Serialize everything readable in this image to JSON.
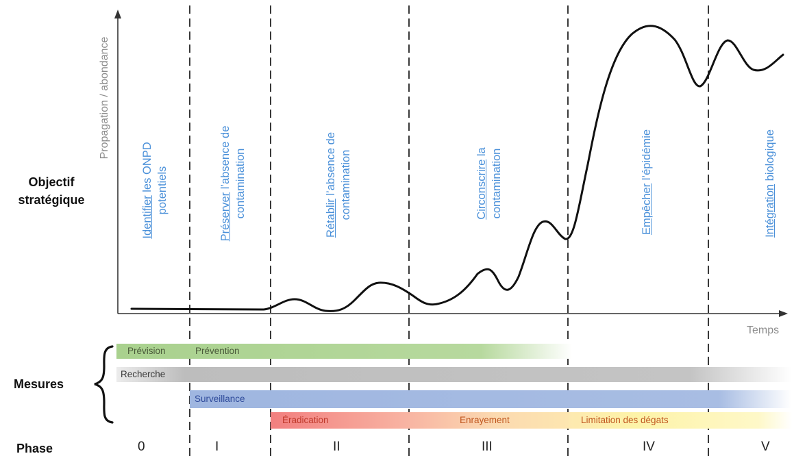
{
  "axes": {
    "y_label": "Propagation / abondance",
    "x_label": "Temps"
  },
  "left_labels": {
    "objectif_line1": "Objectif",
    "objectif_line2": "stratégique",
    "mesures": "Mesures",
    "phase": "Phase"
  },
  "objectives": [
    {
      "underlined": "Identifier",
      "rest1": " les ONPD",
      "line2": "potentiels"
    },
    {
      "underlined": "Préserver",
      "rest1": " l’absence de",
      "line2": "contamination"
    },
    {
      "underlined": "Rétablir",
      "rest1": " l’absence de",
      "line2": "contamination"
    },
    {
      "underlined": "Circonscrire",
      "rest1": " la",
      "line2": "contamination"
    },
    {
      "underlined": "Empêcher",
      "rest1": " l’épidémie",
      "line2": ""
    },
    {
      "underlined": "Intégration",
      "rest1": " biologique",
      "line2": ""
    }
  ],
  "measures": {
    "prevision": "Prévision",
    "prevention": "Prévention",
    "recherche": "Recherche",
    "surveillance": "Surveillance",
    "eradication": "Éradication",
    "enrayement": "Enrayement",
    "limitation": "Limitation des dégats"
  },
  "phases": [
    "0",
    "I",
    "II",
    "III",
    "IV",
    "V"
  ],
  "colors": {
    "objective_text": "#4a90d9",
    "green": "#a9d18e",
    "grey": "#bfbfbf",
    "blue": "#a3b9e0",
    "red": "#f28b8b",
    "orange": "#f9c9a0",
    "yellow": "#fdf5a6",
    "measure_text_dark": "#4a6a2a",
    "surveillance_text": "#2e4a9a",
    "eradication_text": "#c0392b",
    "enrayement_text": "#c0561e"
  }
}
